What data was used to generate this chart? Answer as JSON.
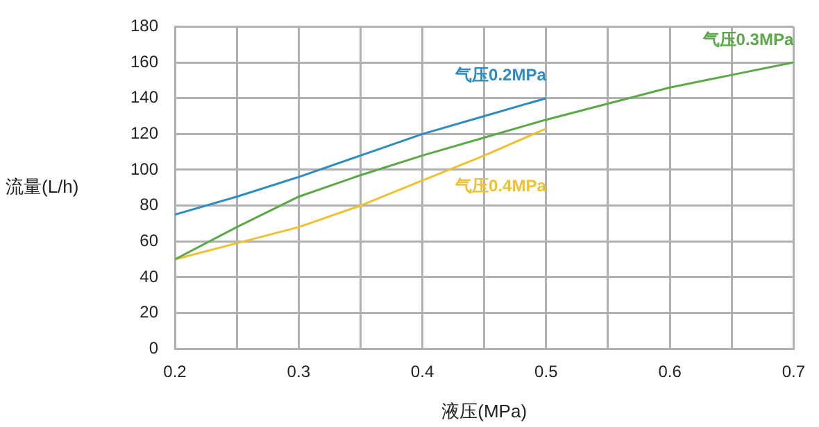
{
  "chart_data": {
    "type": "line",
    "xlabel": "液压(MPa)",
    "ylabel": "流量(L/h)",
    "xlim": [
      0.2,
      0.7
    ],
    "ylim": [
      0,
      180
    ],
    "xticks": [
      0.2,
      {
        "value": 0.25,
        "label": null
      },
      0.3,
      {
        "value": 0.35,
        "label": null
      },
      0.4,
      {
        "value": 0.45,
        "label": null
      },
      0.5,
      {
        "value": 0.55,
        "label": null
      },
      0.6,
      {
        "value": 0.65,
        "label": null
      },
      0.7
    ],
    "yticks": [
      0,
      20,
      40,
      60,
      80,
      100,
      120,
      140,
      160,
      180
    ],
    "grid": true,
    "legend": false,
    "marker": "none",
    "line_style": "solid",
    "series": [
      {
        "name": "气压0.2MPa",
        "color": "#2e8bc0",
        "x": [
          0.2,
          0.25,
          0.3,
          0.35,
          0.4,
          0.45,
          0.5
        ],
        "values": [
          75,
          85,
          96,
          108,
          120,
          130,
          140
        ]
      },
      {
        "name": "气压0.3MPa",
        "color": "#5aa846",
        "x": [
          0.2,
          0.25,
          0.3,
          0.35,
          0.4,
          0.45,
          0.5,
          0.55,
          0.6,
          0.65,
          0.7
        ],
        "values": [
          50,
          68,
          85,
          97,
          108,
          118,
          128,
          137,
          146,
          153,
          160
        ]
      },
      {
        "name": "气压0.4MPa",
        "color": "#f0c030",
        "x": [
          0.2,
          0.25,
          0.3,
          0.35,
          0.4,
          0.45,
          0.5
        ],
        "values": [
          50,
          59,
          68,
          80,
          94,
          108,
          123
        ]
      }
    ]
  }
}
